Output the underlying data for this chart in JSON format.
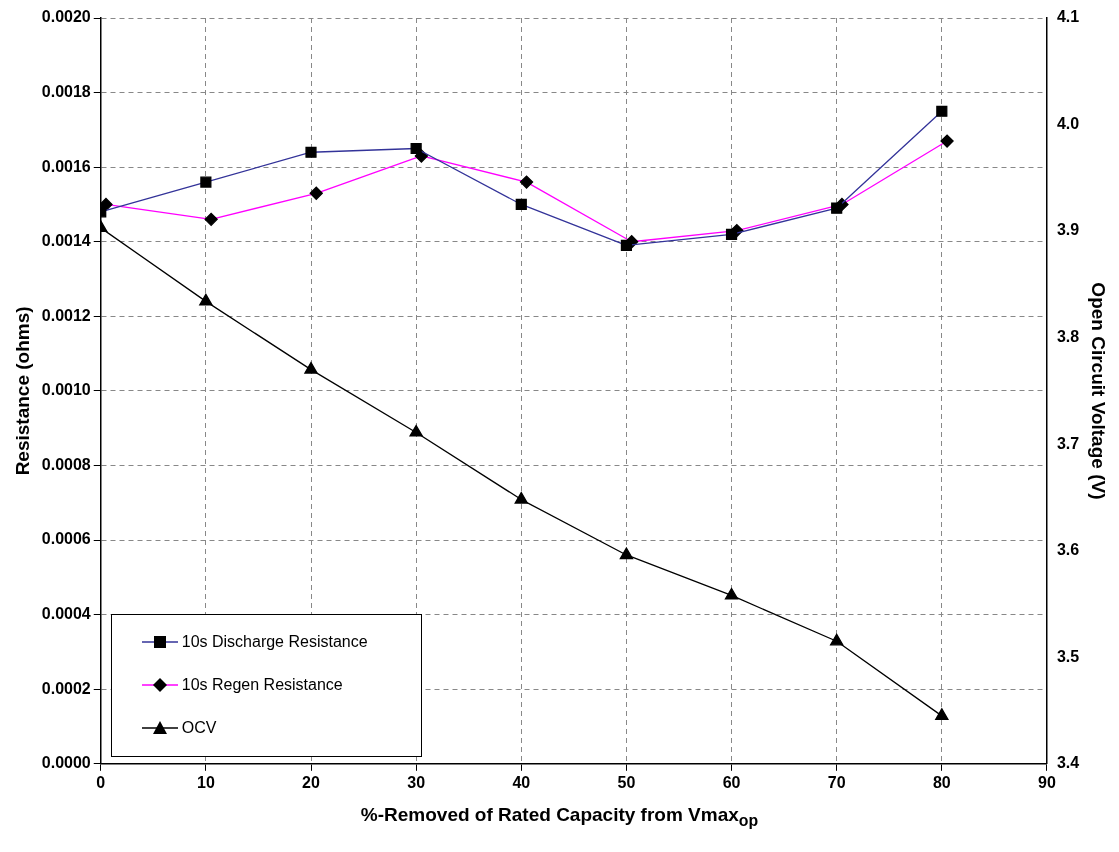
{
  "chart_data": {
    "type": "line",
    "xlabel": "%-Removed of Rated Capacity from Vmax$_{op}$",
    "ylabel": "Resistance (ohms)",
    "y2label": "Open Circuit Voltage (V)",
    "xlim": [
      0,
      90
    ],
    "xticks": [
      0,
      10,
      20,
      30,
      40,
      50,
      60,
      70,
      80,
      90
    ],
    "ylim": [
      0,
      0.002
    ],
    "yticks": [
      {
        "value": 0,
        "label": "0.0000"
      },
      {
        "value": 0.0002,
        "label": "0.0002"
      },
      {
        "value": 0.0004,
        "label": "0.0004"
      },
      {
        "value": 0.0006,
        "label": "0.0006"
      },
      {
        "value": 0.0008,
        "label": "0.0008"
      },
      {
        "value": 0.001,
        "label": "0.0010"
      },
      {
        "value": 0.0012,
        "label": "0.0012"
      },
      {
        "value": 0.0014,
        "label": "0.0014"
      },
      {
        "value": 0.0016,
        "label": "0.0016"
      },
      {
        "value": 0.0018,
        "label": "0.0018"
      },
      {
        "value": 0.002,
        "label": "0.0020"
      }
    ],
    "y2lim": [
      3.4,
      4.1
    ],
    "y2ticks": [
      3.4,
      3.5,
      3.6,
      3.7,
      3.8,
      3.9,
      {
        "value": 4,
        "label": "4.0"
      },
      4.1
    ],
    "grid": true,
    "legend": "bottom left",
    "line_style": "solid",
    "series": [
      {
        "name": "10s Discharge Resistance",
        "color": "#333399",
        "marker": "square",
        "x": [
          0,
          10,
          20,
          30,
          40,
          50,
          60,
          70,
          80
        ],
        "values": [
          0.00148,
          0.00156,
          0.00164,
          0.00165,
          0.0015,
          0.00139,
          0.00142,
          0.00149,
          0.00175
        ]
      },
      {
        "name": "10s Regen Resistance",
        "color": "#ff00ff",
        "marker": "diamond",
        "x": [
          0.5,
          10.5,
          20.5,
          30.5,
          40.5,
          50.5,
          60.5,
          70.5,
          80.5
        ],
        "values": [
          0.0015,
          0.00146,
          0.00153,
          0.00163,
          0.00156,
          0.0014,
          0.00143,
          0.0015,
          0.00167
        ]
      },
      {
        "name": "OCV",
        "color": "#000000",
        "marker": "triangle",
        "axis": "y2",
        "x": [
          0,
          10,
          20,
          30,
          40,
          50,
          60,
          70,
          80
        ],
        "values": [
          3.903,
          3.834,
          3.77,
          3.711,
          3.648,
          3.596,
          3.558,
          3.515,
          3.445
        ]
      }
    ]
  }
}
